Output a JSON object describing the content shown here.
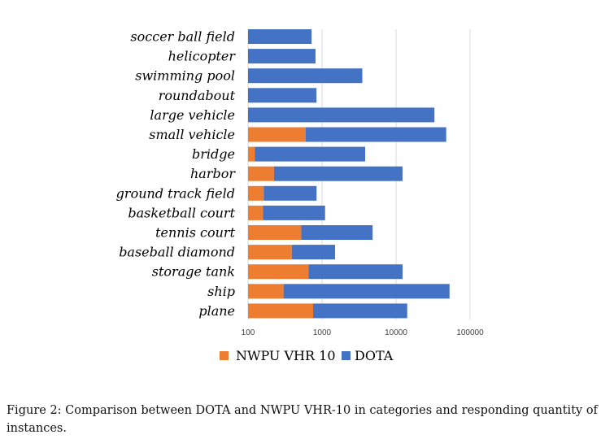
{
  "chart_data": {
    "type": "bar",
    "orientation": "horizontal",
    "stacked": true,
    "x_scale": "log",
    "xlim": [
      100,
      100000
    ],
    "x_ticks": [
      "100",
      "1000",
      "10000",
      "100000"
    ],
    "grid": true,
    "legend_position": "bottom",
    "categories": [
      "soccer ball field",
      "helicopter",
      "swimming pool",
      "roundabout",
      "large vehicle",
      "small vehicle",
      "bridge",
      "harbor",
      "ground track field",
      "basketball court",
      "tennis court",
      "baseball diamond",
      "storage tank",
      "ship",
      "plane"
    ],
    "series": [
      {
        "name": "NWPU VHR 10",
        "color": "#ED7D31",
        "values": [
          0,
          0,
          0,
          0,
          0,
          598,
          124,
          224,
          163,
          159,
          524,
          390,
          655,
          302,
          757
        ]
      },
      {
        "name": "DOTA",
        "color": "#4472C4",
        "values": [
          722,
          816,
          3500,
          841,
          33000,
          47000,
          3700,
          12000,
          680,
          940,
          4300,
          1110,
          11600,
          52500,
          13400
        ]
      }
    ]
  },
  "caption": "Figure 2: Comparison between DOTA and NWPU VHR-10 in categories and responding quantity of instances."
}
